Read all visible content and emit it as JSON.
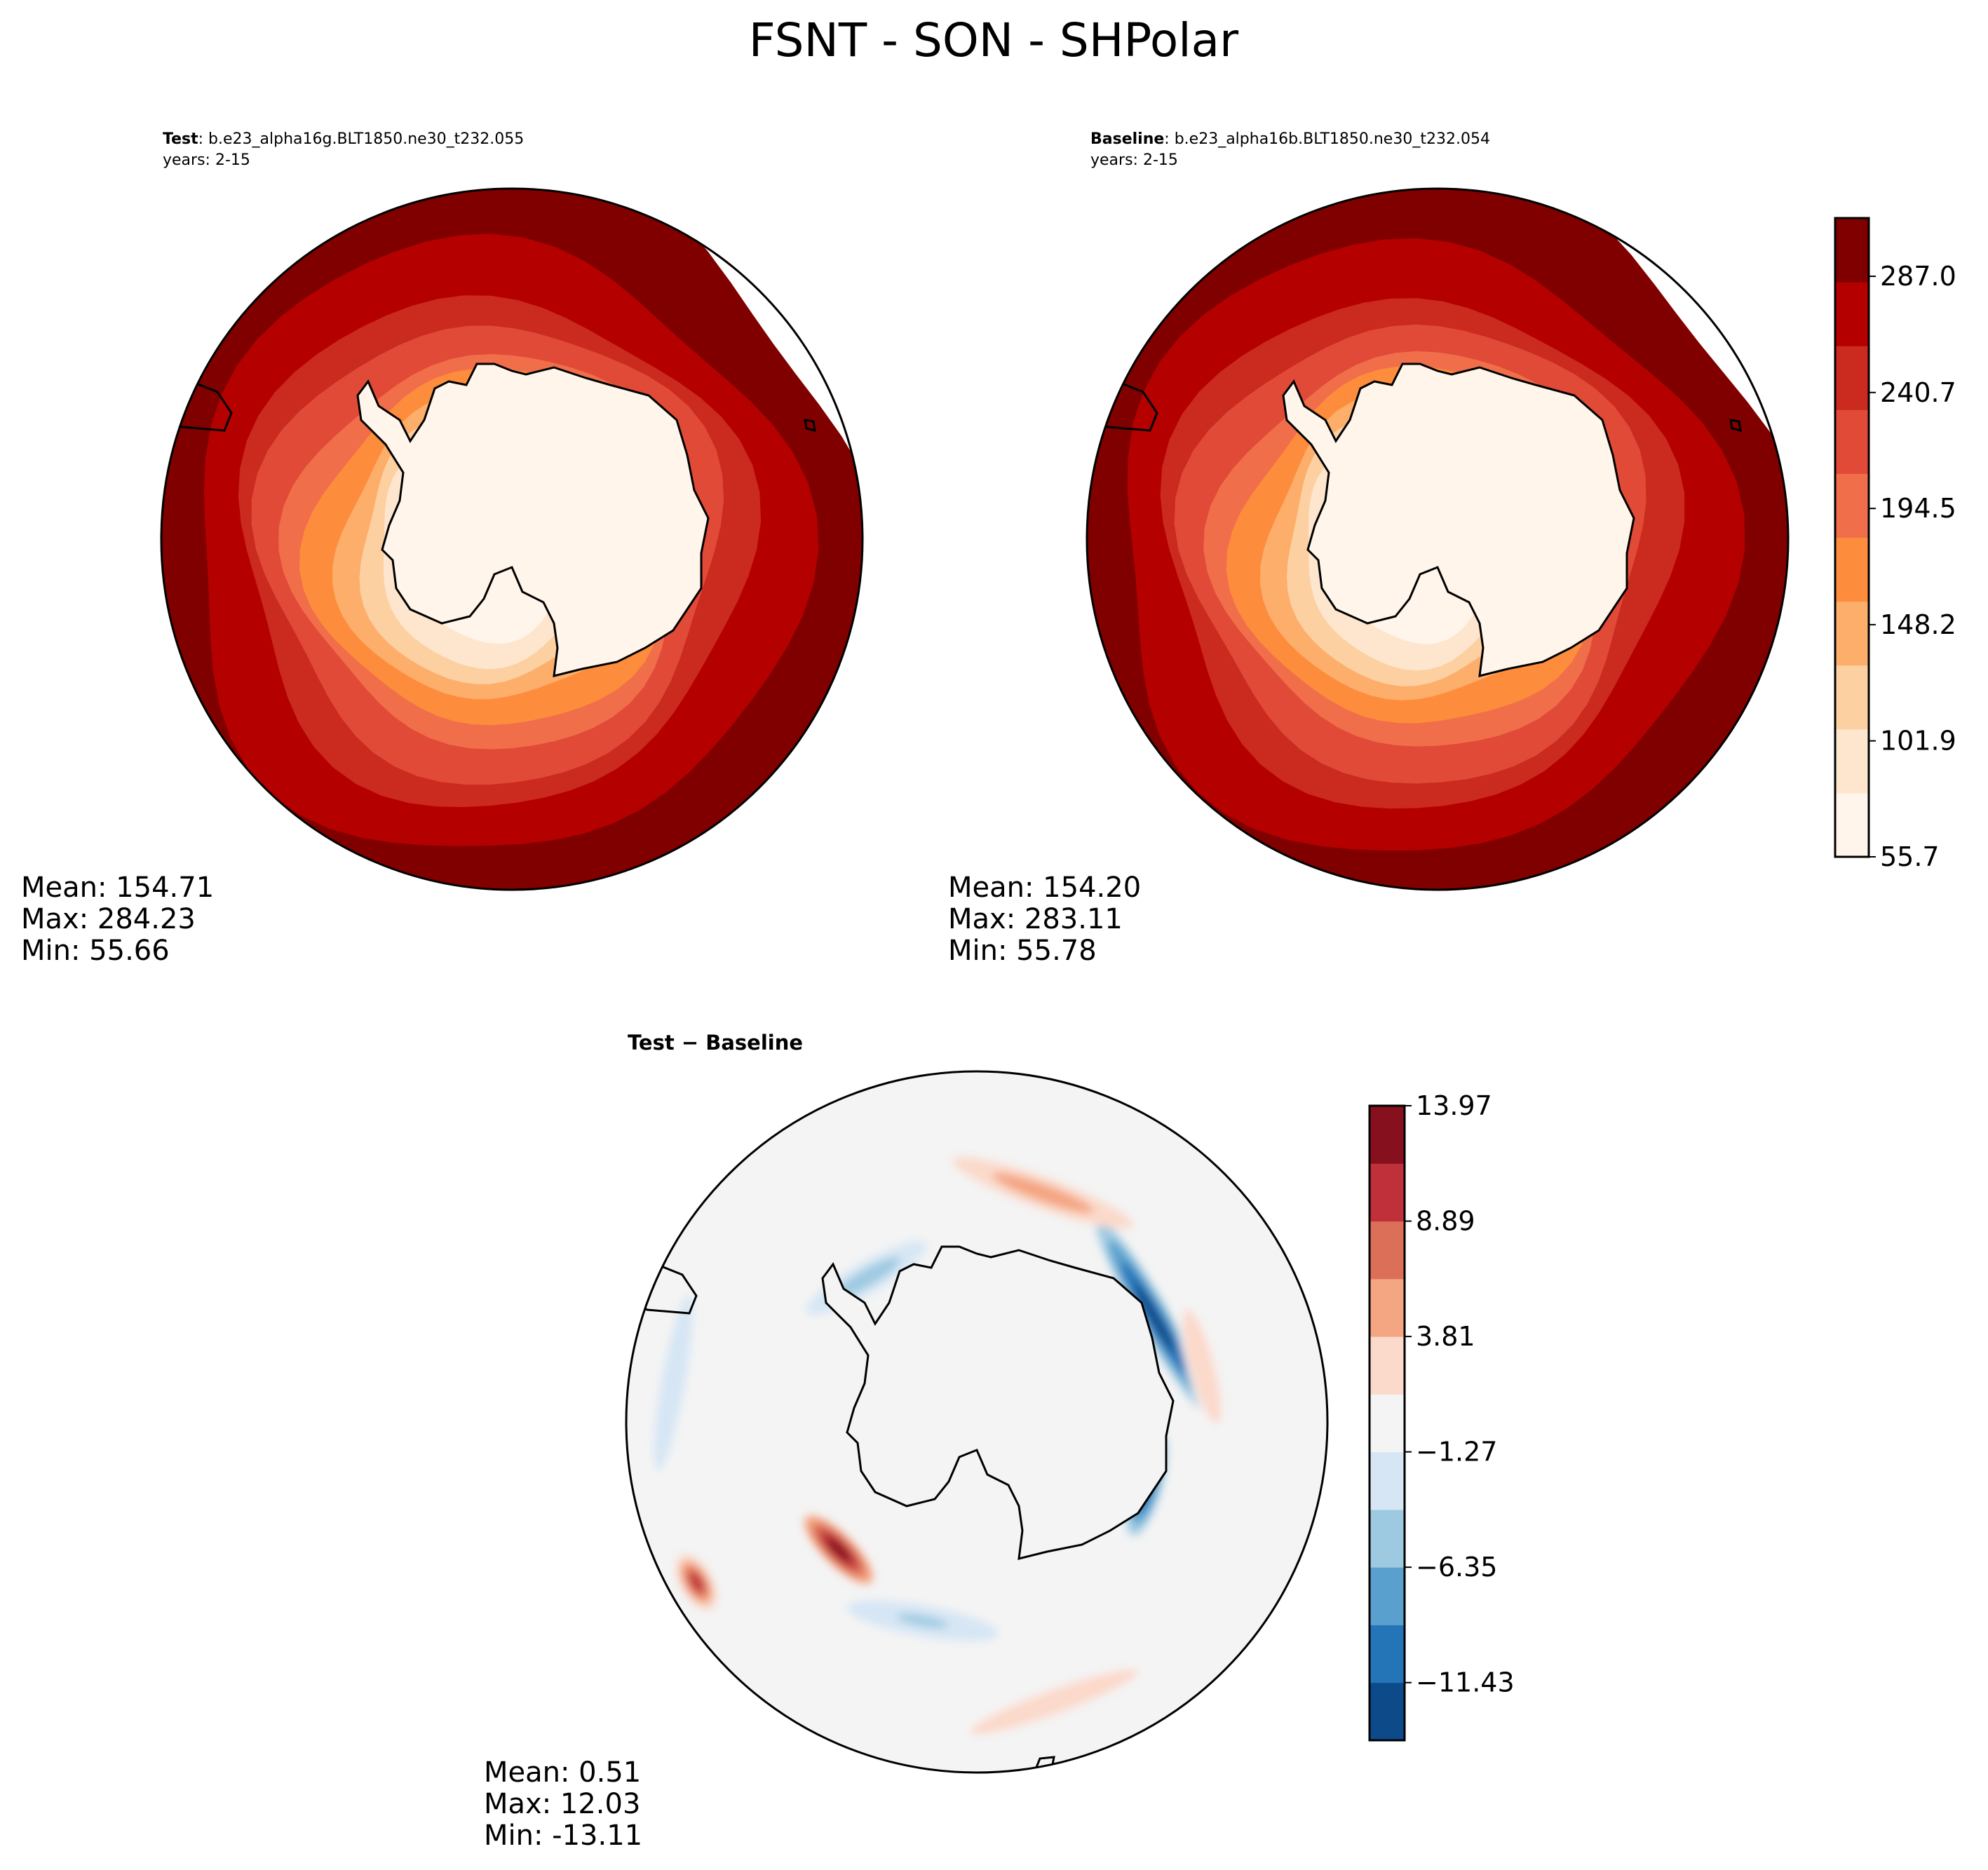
{
  "figure": {
    "title": "FSNT - SON - SHPolar"
  },
  "colors": {
    "sequential": [
      "#fff5eb",
      "#fee6ce",
      "#fdd0a2",
      "#fdae6b",
      "#fd8d3c",
      "#f16e4a",
      "#e04a37",
      "#cb2a1f",
      "#b50000",
      "#800000"
    ],
    "diverging": [
      "#0c4a8a",
      "#2474b8",
      "#5aa0ce",
      "#9ecae1",
      "#d6e6f4",
      "#f4f4f4",
      "#fbd9cb",
      "#f4a582",
      "#dc6f58",
      "#c0303a",
      "#87101f"
    ],
    "outline": "#000000"
  },
  "chart_data": [
    {
      "type": "heatmap",
      "projection": "south-polar-stereographic",
      "panel": "test",
      "title_bold": "Test",
      "title_sep": ": ",
      "title_case": "b.e23_alpha16g.BLT1850.ne30_t232.055",
      "years": "years: 2-15",
      "stats": {
        "mean": "Mean: 154.71",
        "max": "Max: 284.23",
        "min": "Min: 55.66"
      },
      "zonal_rings": [
        {
          "colat_deg": 0,
          "value": 55.7
        },
        {
          "colat_deg": 14,
          "value": 78
        },
        {
          "colat_deg": 18,
          "value": 101.9
        },
        {
          "colat_deg": 21,
          "value": 125
        },
        {
          "colat_deg": 24,
          "value": 148.2
        },
        {
          "colat_deg": 28,
          "value": 171
        },
        {
          "colat_deg": 31,
          "value": 194.5
        },
        {
          "colat_deg": 36,
          "value": 218
        },
        {
          "colat_deg": 40,
          "value": 240.7
        },
        {
          "colat_deg": 48,
          "value": 264
        },
        {
          "colat_deg": 53,
          "value": 287.0
        }
      ]
    },
    {
      "type": "heatmap",
      "projection": "south-polar-stereographic",
      "panel": "baseline",
      "title_bold": "Baseline",
      "title_sep": ": ",
      "title_case": "b.e23_alpha16b.BLT1850.ne30_t232.054",
      "years": "years: 2-15",
      "stats": {
        "mean": "Mean: 154.20",
        "max": "Max: 283.11",
        "min": "Min: 55.78"
      },
      "colorbar": {
        "min": 55.7,
        "max": 310.2,
        "levels": 11,
        "ticks": [
          55.7,
          101.9,
          148.2,
          194.5,
          240.7,
          287.0
        ],
        "tick_labels": [
          "55.7",
          "101.9",
          "148.2",
          "194.5",
          "240.7",
          "287.0"
        ]
      }
    },
    {
      "type": "heatmap",
      "projection": "south-polar-stereographic",
      "panel": "difference",
      "title_bold": "Test − Baseline",
      "stats": {
        "mean": "Mean:  0.51",
        "max": "Max: 12.03",
        "min": "Min: -13.11"
      },
      "colorbar": {
        "min": -13.97,
        "max": 13.97,
        "levels": 11,
        "ticks": [
          -11.43,
          -6.35,
          -1.27,
          3.81,
          8.89,
          13.97
        ],
        "tick_labels": [
          "−11.43",
          "−6.35",
          "−1.27",
          "3.81",
          "8.89",
          "13.97"
        ]
      },
      "anomalies": [
        {
          "lon_deg": 60,
          "colat_deg": 36,
          "value": -12.5,
          "extent_deg": 30
        },
        {
          "lon_deg": 105,
          "colat_deg": 31,
          "value": -11.0,
          "extent_deg": 14
        },
        {
          "lon_deg": 225,
          "colat_deg": 26,
          "value": 12.0,
          "extent_deg": 12
        },
        {
          "lon_deg": 240,
          "colat_deg": 47,
          "value": 9.0,
          "extent_deg": 8
        },
        {
          "lon_deg": 330,
          "colat_deg": 28,
          "value": -6.0,
          "extent_deg": 18
        },
        {
          "lon_deg": 190,
          "colat_deg": 30,
          "value": -4.0,
          "extent_deg": 20
        },
        {
          "lon_deg": 20,
          "colat_deg": 40,
          "value": 4.5,
          "extent_deg": 25
        },
        {
          "lon_deg": 75,
          "colat_deg": 40,
          "value": 3.5,
          "extent_deg": 20
        },
        {
          "lon_deg": 160,
          "colat_deg": 45,
          "value": 2.5,
          "extent_deg": 30
        },
        {
          "lon_deg": 280,
          "colat_deg": 45,
          "value": -2.5,
          "extent_deg": 30
        }
      ]
    }
  ]
}
